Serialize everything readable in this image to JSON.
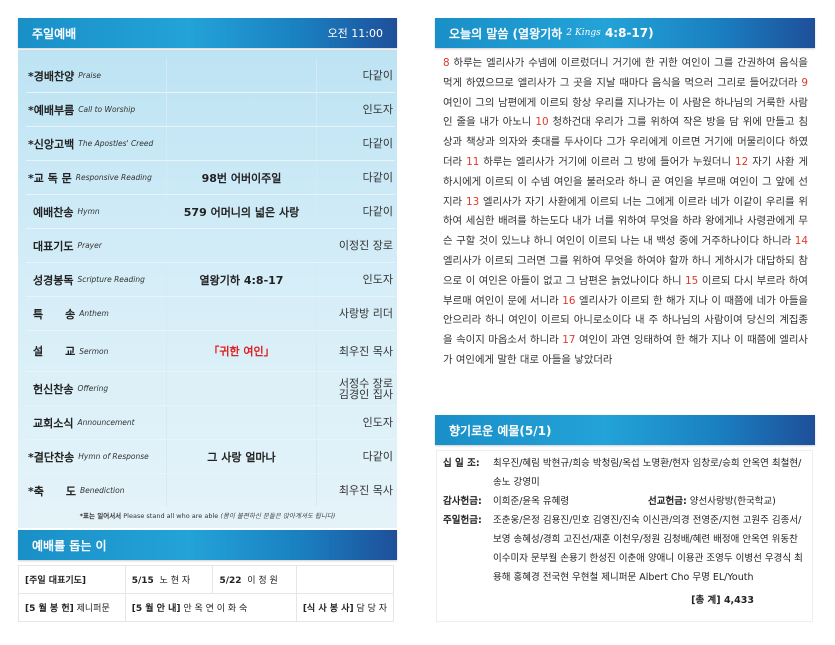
{
  "worship": {
    "title": "주일예배",
    "time": "오전 11:00",
    "rows": [
      {
        "ko": "*경배찬양",
        "en": "Praise",
        "mid": "",
        "who": "다같이"
      },
      {
        "ko": "*예배부름",
        "en": "Call to Worship",
        "mid": "",
        "who": "인도자"
      },
      {
        "ko": "*신앙고백",
        "en": "The Apostles' Creed",
        "mid": "",
        "who": "다같이"
      },
      {
        "ko": "*교 독 문",
        "en": "Responsive Reading",
        "mid": "98번 어버이주일",
        "who": "다같이"
      },
      {
        "ko": "예배찬송",
        "en": "Hymn",
        "mid": "579 어머니의 넓은 사랑",
        "who": "다같이"
      },
      {
        "ko": "대표기도",
        "en": "Prayer",
        "mid": "",
        "who": "이정진 장로"
      },
      {
        "ko": "성경봉독",
        "en": "Scripture Reading",
        "mid": "열왕기하 4:8-17",
        "who": "인도자"
      },
      {
        "ko": "특　　송",
        "en": "Anthem",
        "mid": "",
        "who": "사랑방 리더"
      },
      {
        "ko": "설　　교",
        "en": "Sermon",
        "mid": "「귀한 여인」",
        "who": "최우진 목사"
      },
      {
        "ko": "헌신찬송",
        "en": "Offering",
        "mid": "",
        "who": "서정수 장로\n김경인 집사"
      },
      {
        "ko": "교회소식",
        "en": "Announcement",
        "mid": "",
        "who": "인도자"
      },
      {
        "ko": "*결단찬송",
        "en": "Hymn of Response",
        "mid": "그 사랑 얼마나",
        "who": "다같이"
      },
      {
        "ko": "*축　　도",
        "en": "Benediction",
        "mid": "",
        "who": "최우진 목사"
      }
    ],
    "note_bold": "*표는 일어서서",
    "note_en": "Please stand all who are able",
    "note_it": "(몸이 불편하신 분들은 앉아계셔도 됩니다)"
  },
  "helpers": {
    "title": "예배를 돕는 이",
    "prayer_label": "[주일 대표기도]",
    "prayer1_date": "5/15",
    "prayer1_name": "노 현 자",
    "prayer2_date": "5/22",
    "prayer2_name": "이 정 원",
    "flower_label": "[5 월 봉 헌]",
    "flower_name": "제니퍼문",
    "usher_label": "[5 월 안 내]",
    "usher_names": "안 옥 연  이 화 숙",
    "meal_label": "[식 사 봉 사]",
    "meal_name": "담 당 자"
  },
  "scripture": {
    "title_ko": "오늘의 말씀 (열왕기하",
    "title_en": "2 Kings",
    "title_ref": "4:8-17)",
    "verses": [
      {
        "n": "8",
        "t": "하루는 엘리사가 수넴에 이르렀더니 거기에 한 귀한 여인이 그를 간권하여 음식을 먹게 하였으므로 엘리사가 그 곳을 지날 때마다 음식을 먹으러 그리로 들어갔더라"
      },
      {
        "n": "9",
        "t": "여인이 그의 남편에게 이르되 항상 우리를 지나가는 이 사람은 하나님의 거룩한 사람인 줄을 내가 아노니"
      },
      {
        "n": "10",
        "t": "청하건대 우리가 그를 위하여 작은 방을 담 위에 만들고 침상과 책상과 의자와 촛대를 두사이다 그가 우리에게 이르면 거기에 머물리이다 하였더라"
      },
      {
        "n": "11",
        "t": "하루는 엘리사가 거기에 이르러 그 방에 들어가 누웠더니"
      },
      {
        "n": "12",
        "t": "자기 사환 게하시에게 이르되 이 수넴 여인을 불러오라 하니 곧 여인을 부르매 여인이 그 앞에 선지라"
      },
      {
        "n": "13",
        "t": "엘리사가 자기 사환에게 이르되 너는 그에게 이르라 네가 이같이 우리를 위하여 세심한 배려를 하는도다 내가 너를 위하여 무엇을 하랴 왕에게나 사령관에게 무슨 구할 것이 있느냐 하니 여인이 이르되 나는 내 백성 중에 거주하나이다 하니라"
      },
      {
        "n": "14",
        "t": "엘리사가 이르되 그러면 그를 위하여 무엇을 하여야 할까 하니 게하시가 대답하되 참으로 이 여인은 아들이 없고 그 남편은 늙었나이다 하니"
      },
      {
        "n": "15",
        "t": "이르되 다시 부르라 하여 부르매 여인이 문에 서니라"
      },
      {
        "n": "16",
        "t": "엘리사가 이르되 한 해가 지나 이 때쯤에 네가 아들을 안으리라 하니 여인이 이르되 아니로소이다 내 주 하나님의 사람이여 당신의 계집종을 속이지 마옵소서 하니라"
      },
      {
        "n": "17",
        "t": "여인이 과연 잉태하여 한 해가 지나 이 때쯤에 엘리사가 여인에게 말한 대로 아들을 낳았더라"
      }
    ]
  },
  "offering": {
    "title": "향기로운 예물(5/1)",
    "tithe_label": "십 일 조:",
    "tithe": "최우진/혜림 박현규/희승 박청림/옥섭 노명환/현자 임창로/승희 안옥연 최철현/송노 강영미",
    "thanks_label": "감사헌금:",
    "thanks": "이희준/윤옥 유혜령",
    "mission_label": "선교헌금:",
    "mission": "양선사랑방(한국학교)",
    "sunday_label": "주일헌금:",
    "sunday": "조춘웅/은정 김용진/민호 김영진/진숙 이신관/의경 전영준/지현 고원주 김종서/보영 송혜성/경희 고진선/재훈 이천우/정원 김청배/혜련 배정애 안옥연 위동찬 이수미자 문부월 손용기 한성진 이춘애 양애니 이용관 조영두 이병선 우경식 최용해 홍혜경 전국현 우현철 제니퍼문 Albert Cho 무명 EL/Youth",
    "total_label": "[총 계]",
    "total": "4,433"
  }
}
